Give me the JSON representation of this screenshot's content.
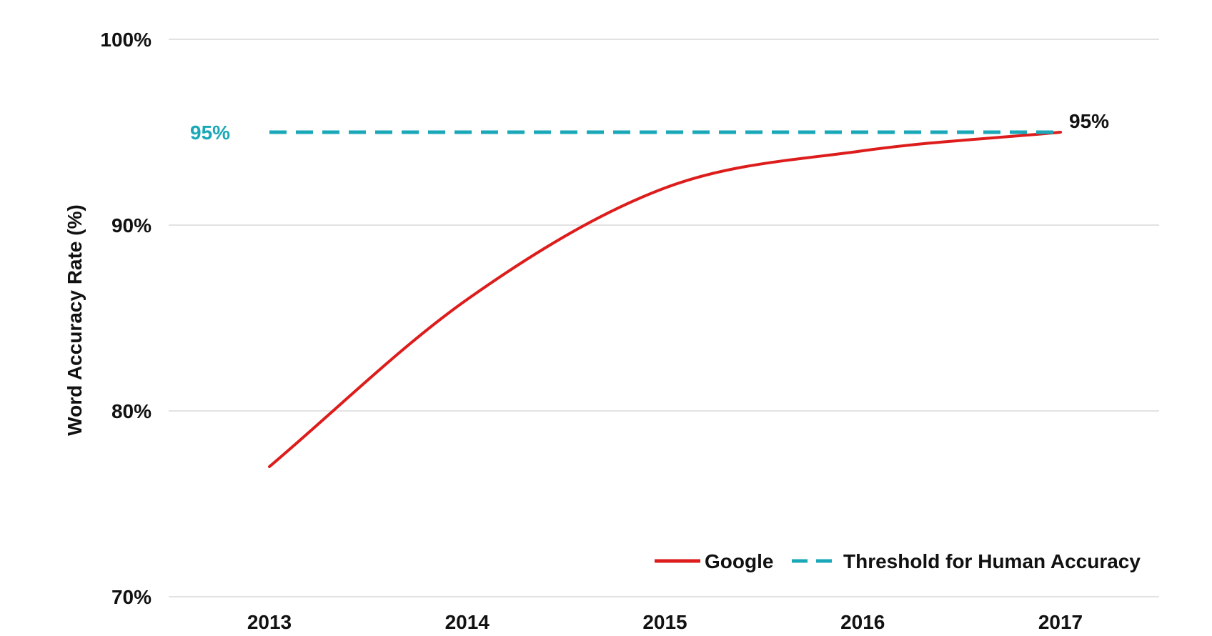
{
  "chart_data": {
    "type": "line",
    "title": "",
    "xlabel": "",
    "ylabel": "Word Accuracy Rate (%)",
    "x": [
      "2013",
      "2014",
      "2015",
      "2016",
      "2017"
    ],
    "ylim": [
      70,
      100
    ],
    "yticks": [
      70,
      80,
      90,
      100
    ],
    "ytick_labels": [
      "70%",
      "80%",
      "90%",
      "100%"
    ],
    "grid": true,
    "legend_position": "bottom-right",
    "series": [
      {
        "name": "Google",
        "values": [
          77,
          86,
          92,
          94,
          95
        ],
        "color": "#dd1c1c",
        "style": "solid",
        "smooth": true,
        "end_label": "95%"
      },
      {
        "name": "Threshold for Human Accuracy",
        "values": [
          95,
          95,
          95,
          95,
          95
        ],
        "color": "#1aa8b8",
        "style": "dashed",
        "start_label": "95%"
      }
    ]
  }
}
